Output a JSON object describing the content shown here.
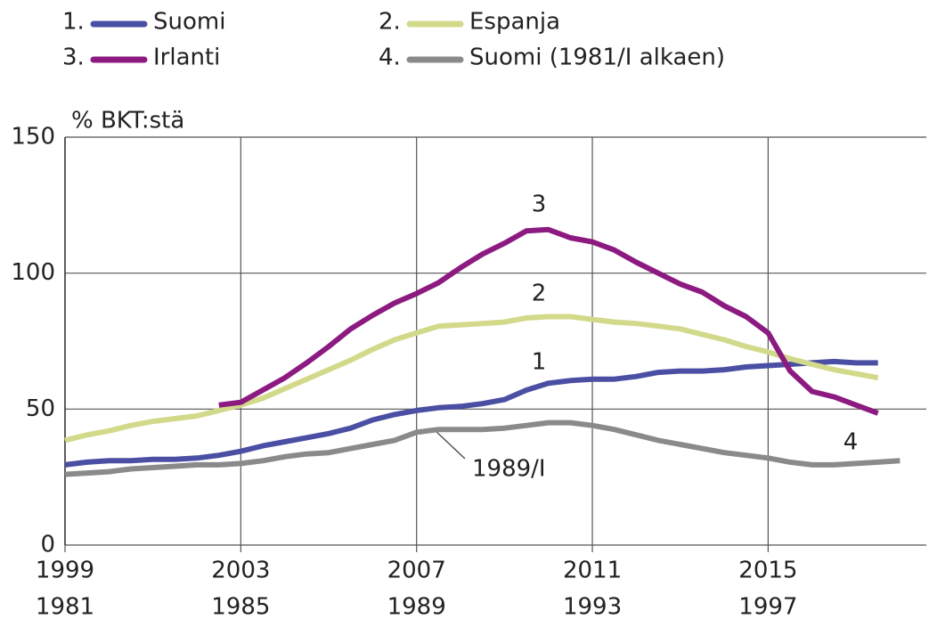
{
  "chart_data": {
    "type": "line",
    "y_label": "% BKT:stä",
    "x": [
      1999,
      1999.5,
      2000,
      2000.5,
      2001,
      2001.5,
      2002,
      2002.5,
      2003,
      2003.5,
      2004,
      2004.5,
      2005,
      2005.5,
      2006,
      2006.5,
      2007,
      2007.5,
      2008,
      2008.5,
      2009,
      2009.5,
      2010,
      2010.5,
      2011,
      2011.5,
      2012,
      2012.5,
      2013,
      2013.5,
      2014,
      2014.5,
      2015,
      2015.5,
      2016,
      2016.5,
      2017,
      2017.5
    ],
    "xlim": [
      1999,
      2018.6
    ],
    "xticks": [
      1999,
      2003,
      2007,
      2011,
      2015
    ],
    "x2lim": [
      1981,
      2000.6
    ],
    "x2ticks": [
      1981,
      1985,
      1989,
      1993,
      1997
    ],
    "ylim": [
      0,
      150
    ],
    "yticks": [
      0,
      50,
      100,
      150
    ],
    "grid": true,
    "series": [
      {
        "number": "1.",
        "name": "Suomi",
        "color": "#4a4fa3",
        "values": [
          29.5,
          30.5,
          31,
          31,
          31.5,
          31.5,
          32,
          33,
          34.5,
          36.5,
          38,
          39.5,
          41,
          43,
          46,
          48,
          49.5,
          50.5,
          51,
          52,
          53.5,
          57,
          59.5,
          60.5,
          61,
          61,
          62,
          63.5,
          64,
          64,
          64.5,
          65.5,
          66,
          66.5,
          67,
          67.5,
          67,
          67
        ]
      },
      {
        "number": "2.",
        "name": "Espanja",
        "color": "#d3d98a",
        "values": [
          38.5,
          40.5,
          42,
          44,
          45.5,
          46.5,
          47.5,
          49.5,
          51.5,
          54,
          57.5,
          61,
          64.5,
          68,
          72,
          75.5,
          78,
          80.5,
          81,
          81.5,
          82,
          83.5,
          84,
          84,
          83,
          82,
          81.5,
          80.5,
          79.5,
          77.5,
          75.5,
          73,
          71,
          68.5,
          66.5,
          64.5,
          63,
          61.5
        ]
      },
      {
        "number": "3.",
        "name": "Irlanti",
        "color": "#8c1a80",
        "values": [
          null,
          null,
          null,
          null,
          null,
          null,
          null,
          51.5,
          52.5,
          57,
          61.5,
          67,
          73,
          79.5,
          84.5,
          89,
          92.5,
          96.5,
          102,
          107,
          111,
          115.5,
          116,
          113,
          111.5,
          108.5,
          104,
          100,
          96,
          93,
          88,
          84,
          78,
          64,
          56.5,
          54.5,
          51.5,
          48.5
        ]
      },
      {
        "number": "4.",
        "name": "Suomi (1981/I alkaen)",
        "color": "#8a8a8a",
        "axis": "x2",
        "x": [
          1981,
          1981.5,
          1982,
          1982.5,
          1983,
          1983.5,
          1984,
          1984.5,
          1985,
          1985.5,
          1986,
          1986.5,
          1987,
          1987.5,
          1988,
          1988.5,
          1989,
          1989.5,
          1990,
          1990.5,
          1991,
          1991.5,
          1992,
          1992.5,
          1993,
          1993.5,
          1994,
          1994.5,
          1995,
          1995.5,
          1996,
          1996.5,
          1997,
          1997.5,
          1998,
          1998.5,
          1999,
          1999.5,
          2000
        ],
        "values": [
          26,
          26.5,
          27,
          28,
          28.5,
          29,
          29.5,
          29.5,
          30,
          31,
          32.5,
          33.5,
          34,
          35.5,
          37,
          38.5,
          41.5,
          42.5,
          42.5,
          42.5,
          43,
          44,
          45,
          45,
          44,
          42.5,
          40.5,
          38.5,
          37,
          35.5,
          34,
          33,
          32,
          30.5,
          29.5,
          29.5,
          30,
          30.5,
          31
        ]
      }
    ],
    "annotations": [
      "3",
      "2",
      "1",
      "4",
      "1989/I"
    ]
  }
}
